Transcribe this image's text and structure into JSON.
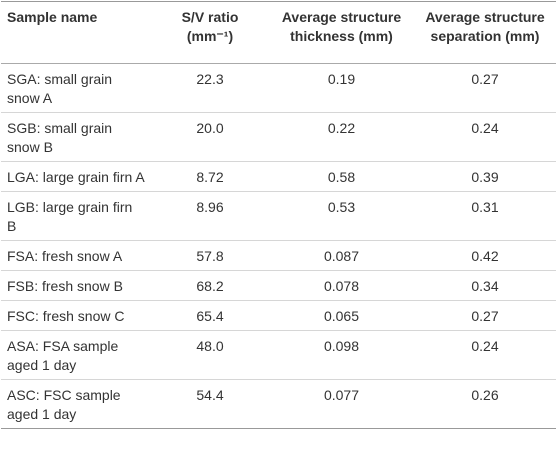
{
  "table": {
    "header": [
      "Sample name",
      "S/V ratio (mm⁻¹)",
      "Average structure thickness (mm)",
      "Average structure separation (mm)"
    ],
    "rows": [
      [
        "SGA: small grain snow A",
        "22.3",
        "0.19",
        "0.27"
      ],
      [
        "SGB: small grain snow B",
        "20.0",
        "0.22",
        "0.24"
      ],
      [
        "LGA: large grain firn A",
        "8.72",
        "0.58",
        "0.39"
      ],
      [
        "LGB: large grain firn B",
        "8.96",
        "0.53",
        "0.31"
      ],
      [
        "FSA: fresh snow A",
        "57.8",
        "0.087",
        "0.42"
      ],
      [
        "FSB: fresh snow B",
        "68.2",
        "0.078",
        "0.34"
      ],
      [
        "FSC: fresh snow C",
        "65.4",
        "0.065",
        "0.27"
      ],
      [
        "ASA: FSA sample aged 1 day",
        "48.0",
        "0.098",
        "0.24"
      ],
      [
        "ASC: FSC sample aged 1 day",
        "54.4",
        "0.077",
        "0.26"
      ]
    ]
  }
}
